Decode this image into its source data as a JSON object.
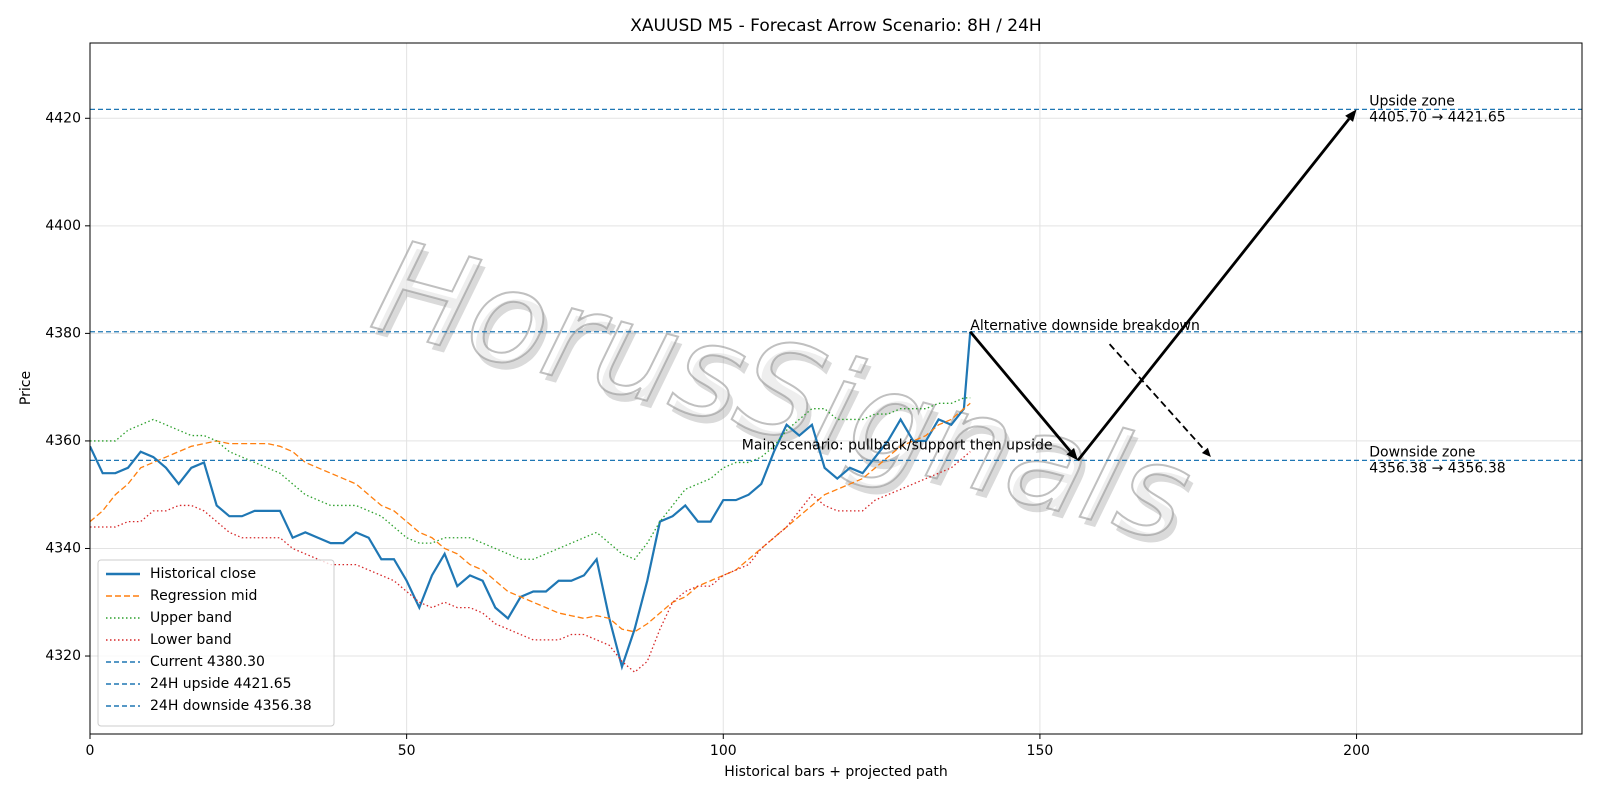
{
  "chart_data": {
    "type": "line",
    "title": "XAUUSD M5 - Forecast Arrow Scenario: 8H / 24H",
    "x_label": "Historical bars + projected path",
    "y_label": "Price",
    "watermark": "HorusSignals",
    "grid": true,
    "legend": "lower left",
    "xlim": [
      0,
      235.6
    ],
    "ylim": [
      4305.5,
      4434
    ],
    "xticks": [
      0,
      50,
      100,
      150,
      200
    ],
    "yticks": [
      4320,
      4340,
      4360,
      4380,
      4400,
      4420
    ],
    "x": [
      0,
      2,
      4,
      6,
      8,
      10,
      12,
      14,
      16,
      18,
      20,
      22,
      24,
      26,
      28,
      30,
      32,
      34,
      36,
      38,
      40,
      42,
      44,
      46,
      48,
      50,
      52,
      54,
      56,
      58,
      60,
      62,
      64,
      66,
      68,
      70,
      72,
      74,
      76,
      78,
      80,
      82,
      84,
      86,
      88,
      90,
      92,
      94,
      96,
      98,
      100,
      102,
      104,
      106,
      108,
      110,
      112,
      114,
      116,
      118,
      120,
      122,
      124,
      126,
      128,
      130,
      132,
      134,
      136,
      138,
      139
    ],
    "series": [
      {
        "name": "Historical close",
        "color": "#1f77b4",
        "style": "solid",
        "values": [
          4359,
          4354,
          4354,
          4355,
          4358,
          4357,
          4355,
          4352,
          4355,
          4356,
          4348,
          4346,
          4346,
          4347,
          4347,
          4347,
          4342,
          4343,
          4342,
          4341,
          4341,
          4343,
          4342,
          4338,
          4338,
          4334,
          4329,
          4335,
          4339,
          4333,
          4335,
          4334,
          4329,
          4327,
          4331,
          4332,
          4332,
          4334,
          4334,
          4335,
          4338,
          4327,
          4318,
          4325,
          4334,
          4345,
          4346,
          4348,
          4345,
          4345,
          4349,
          4349,
          4350,
          4352,
          4358,
          4363,
          4361,
          4363,
          4355,
          4353,
          4355,
          4354,
          4357,
          4360,
          4364,
          4360,
          4360,
          4364,
          4363,
          4366,
          4380.3
        ]
      },
      {
        "name": "Regression mid",
        "color": "#ff7f0e",
        "style": "dashed",
        "values": [
          4345,
          4347,
          4350,
          4352,
          4355,
          4356,
          4357,
          4358,
          4359,
          4359.5,
          4360,
          4359.5,
          4359.5,
          4359.5,
          4359.5,
          4359,
          4358,
          4356,
          4355,
          4354,
          4353,
          4352,
          4350,
          4348,
          4347,
          4345,
          4343,
          4342,
          4340,
          4339,
          4337,
          4336,
          4334,
          4332,
          4331,
          4330,
          4329,
          4328,
          4327.5,
          4327,
          4327.5,
          4327,
          4325,
          4324.5,
          4326,
          4328,
          4330,
          4331,
          4333,
          4334,
          4335,
          4336,
          4338,
          4340,
          4342,
          4344,
          4346,
          4348,
          4350,
          4351,
          4352,
          4353,
          4355,
          4357,
          4359,
          4360,
          4361,
          4363,
          4364,
          4366,
          4367
        ]
      },
      {
        "name": "Upper band",
        "color": "#2ca02c",
        "style": "dotted",
        "values": [
          4360,
          4360,
          4360,
          4362,
          4363,
          4364,
          4363,
          4362,
          4361,
          4361,
          4360,
          4358,
          4357,
          4356,
          4355,
          4354,
          4352,
          4350,
          4349,
          4348,
          4348,
          4348,
          4347,
          4346,
          4344,
          4342,
          4341,
          4341,
          4342,
          4342,
          4342,
          4341,
          4340,
          4339,
          4338,
          4338,
          4339,
          4340,
          4341,
          4342,
          4343,
          4341,
          4339,
          4338,
          4341,
          4345,
          4348,
          4351,
          4352,
          4353,
          4355,
          4356,
          4356,
          4357,
          4359,
          4362,
          4364,
          4366,
          4366,
          4364,
          4364,
          4364,
          4365,
          4365,
          4366,
          4366,
          4366,
          4367,
          4367,
          4368,
          4368
        ]
      },
      {
        "name": "Lower band",
        "color": "#d62728",
        "style": "dotted",
        "values": [
          4344,
          4344,
          4344,
          4345,
          4345,
          4347,
          4347,
          4348,
          4348,
          4347,
          4345,
          4343,
          4342,
          4342,
          4342,
          4342,
          4340,
          4339,
          4338,
          4337,
          4337,
          4337,
          4336,
          4335,
          4334,
          4332,
          4330,
          4329,
          4330,
          4329,
          4329,
          4328,
          4326,
          4325,
          4324,
          4323,
          4323,
          4323,
          4324,
          4324,
          4323,
          4322,
          4319,
          4317,
          4319,
          4325,
          4330,
          4332,
          4333,
          4333,
          4335,
          4336,
          4337,
          4340,
          4342,
          4344,
          4347,
          4350,
          4348,
          4347,
          4347,
          4347,
          4349,
          4350,
          4351,
          4352,
          4353,
          4354,
          4355,
          4357,
          4358
        ]
      }
    ],
    "hlines": [
      {
        "name": "Current 4380.30",
        "value": 4380.3,
        "color": "#1f77b4"
      },
      {
        "name": "24H upside 4421.65",
        "value": 4421.65,
        "color": "#1f77b4"
      },
      {
        "name": "24H downside 4356.38",
        "value": 4356.38,
        "color": "#1f77b4"
      }
    ],
    "arrows": [
      {
        "x": [
          139,
          156
        ],
        "y": [
          4380.3,
          4356.38
        ],
        "style": "solid"
      },
      {
        "x": [
          156,
          200
        ],
        "y": [
          4356.38,
          4421.65
        ],
        "style": "solid"
      },
      {
        "x": [
          161,
          177
        ],
        "y": [
          4378,
          4357
        ],
        "style": "dashed"
      }
    ],
    "annotations": [
      {
        "lines": [
          "Alternative downside breakdown"
        ],
        "x": 139,
        "y": 4380.3,
        "ha": "left",
        "va": "bottom"
      },
      {
        "lines": [
          "Main scenario: pullback/support then upside"
        ],
        "x": 152,
        "y": 4358,
        "ha": "right",
        "va": "bottom"
      },
      {
        "lines": [
          "Upside zone",
          "4405.70 → 4421.65"
        ],
        "x": 202,
        "y": 4421.65,
        "ha": "left",
        "va": "center"
      },
      {
        "lines": [
          "Downside zone",
          "4356.38 → 4356.38"
        ],
        "x": 202,
        "y": 4356.38,
        "ha": "left",
        "va": "center"
      }
    ]
  }
}
